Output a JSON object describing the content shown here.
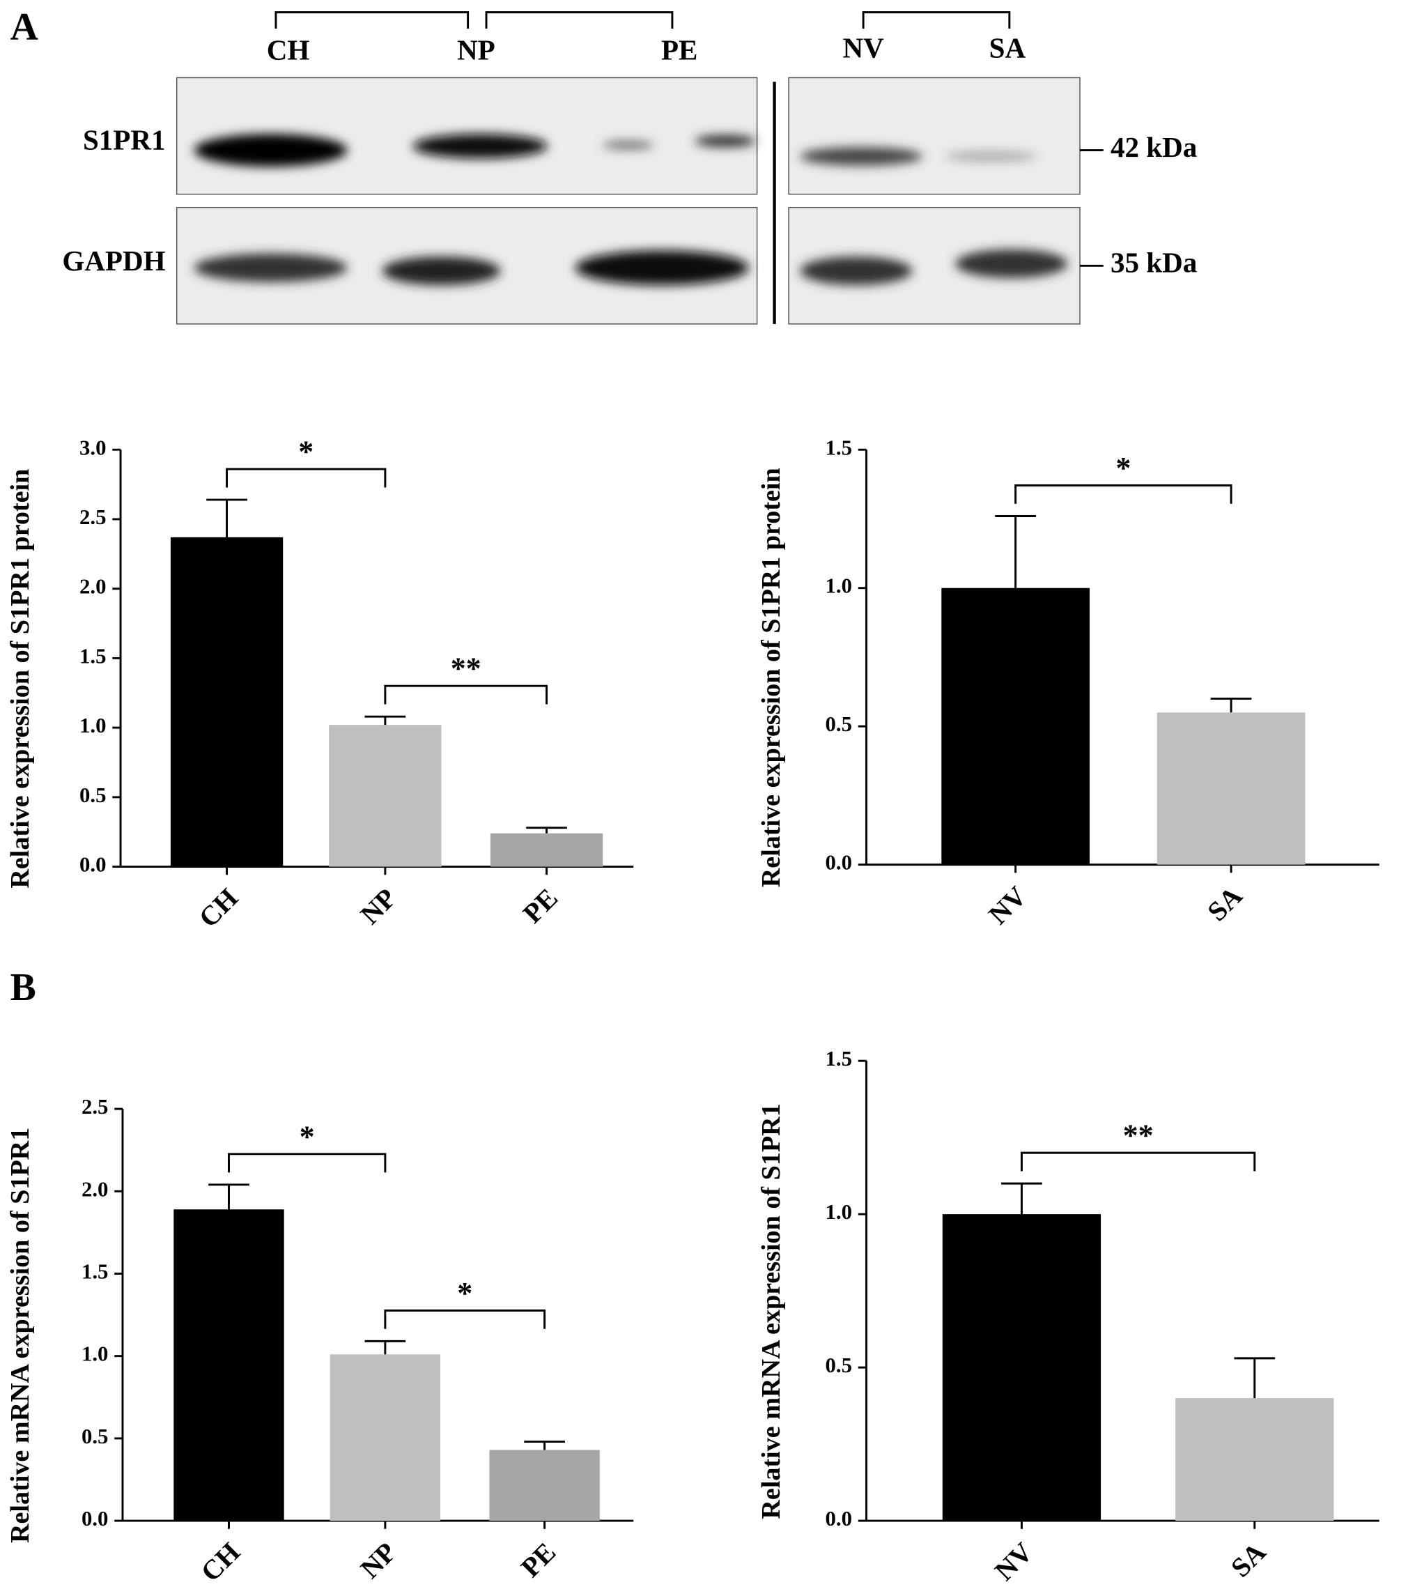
{
  "panel_labels": [
    "A",
    "B"
  ],
  "blot": {
    "lanes": [
      "CH",
      "NP",
      "PE",
      "NV",
      "SA"
    ],
    "rows": [
      "S1PR1",
      "GAPDH"
    ],
    "markers": [
      "42 kDa",
      "35 kDa"
    ]
  },
  "chart_data": [
    {
      "type": "bar",
      "ylabel": "Relative expression of S1PR1 protein",
      "categories": [
        "CH",
        "NP",
        "PE"
      ],
      "values": [
        2.37,
        1.02,
        0.24
      ],
      "errors": [
        0.27,
        0.06,
        0.04
      ],
      "colors": [
        "#000000",
        "#bfbfbf",
        "#a6a6a6"
      ],
      "ylim": [
        0,
        3
      ],
      "yticks": [
        {
          "value": 0,
          "label": "0.0"
        },
        {
          "value": 0.5,
          "label": "0.5"
        },
        {
          "value": 1,
          "label": "1.0"
        },
        {
          "value": 1.5,
          "label": "1.5"
        },
        {
          "value": 2,
          "label": "2.0"
        },
        {
          "value": 2.5,
          "label": "2.5"
        },
        {
          "value": 3,
          "label": "3.0"
        }
      ],
      "significance": [
        {
          "pair": [
            0,
            1
          ],
          "label": "*"
        },
        {
          "pair": [
            1,
            2
          ],
          "label": "**"
        }
      ]
    },
    {
      "type": "bar",
      "ylabel": "Relative expression of S1PR1 protein",
      "categories": [
        "NV",
        "SA"
      ],
      "values": [
        1.0,
        0.55
      ],
      "errors": [
        0.26,
        0.05
      ],
      "colors": [
        "#000000",
        "#bfbfbf"
      ],
      "ylim": [
        0,
        1.5
      ],
      "yticks": [
        {
          "value": 0,
          "label": "0.0"
        },
        {
          "value": 0.5,
          "label": "0.5"
        },
        {
          "value": 1,
          "label": "1.0"
        },
        {
          "value": 1.5,
          "label": "1.5"
        }
      ],
      "significance": [
        {
          "pair": [
            0,
            1
          ],
          "label": "*"
        }
      ]
    },
    {
      "type": "bar",
      "ylabel": "Relative mRNA expression of S1PR1",
      "categories": [
        "CH",
        "NP",
        "PE"
      ],
      "values": [
        1.89,
        1.01,
        0.43
      ],
      "errors": [
        0.15,
        0.08,
        0.05
      ],
      "colors": [
        "#000000",
        "#bfbfbf",
        "#a6a6a6"
      ],
      "ylim": [
        0,
        2.5
      ],
      "yticks": [
        {
          "value": 0,
          "label": "0.0"
        },
        {
          "value": 0.5,
          "label": "0.5"
        },
        {
          "value": 1,
          "label": "1.0"
        },
        {
          "value": 1.5,
          "label": "1.5"
        },
        {
          "value": 2,
          "label": "2.0"
        },
        {
          "value": 2.5,
          "label": "2.5"
        }
      ],
      "significance": [
        {
          "pair": [
            0,
            1
          ],
          "label": "*"
        },
        {
          "pair": [
            1,
            2
          ],
          "label": "*"
        }
      ]
    },
    {
      "type": "bar",
      "ylabel": "Relative mRNA expression of S1PR1",
      "categories": [
        "NV",
        "SA"
      ],
      "values": [
        1.0,
        0.4
      ],
      "errors": [
        0.1,
        0.13
      ],
      "colors": [
        "#000000",
        "#bfbfbf"
      ],
      "ylim": [
        0,
        1.5
      ],
      "yticks": [
        {
          "value": 0,
          "label": "0.0"
        },
        {
          "value": 0.5,
          "label": "0.5"
        },
        {
          "value": 1,
          "label": "1.0"
        },
        {
          "value": 1.5,
          "label": "1.5"
        }
      ],
      "significance": [
        {
          "pair": [
            0,
            1
          ],
          "label": "**"
        }
      ]
    }
  ]
}
